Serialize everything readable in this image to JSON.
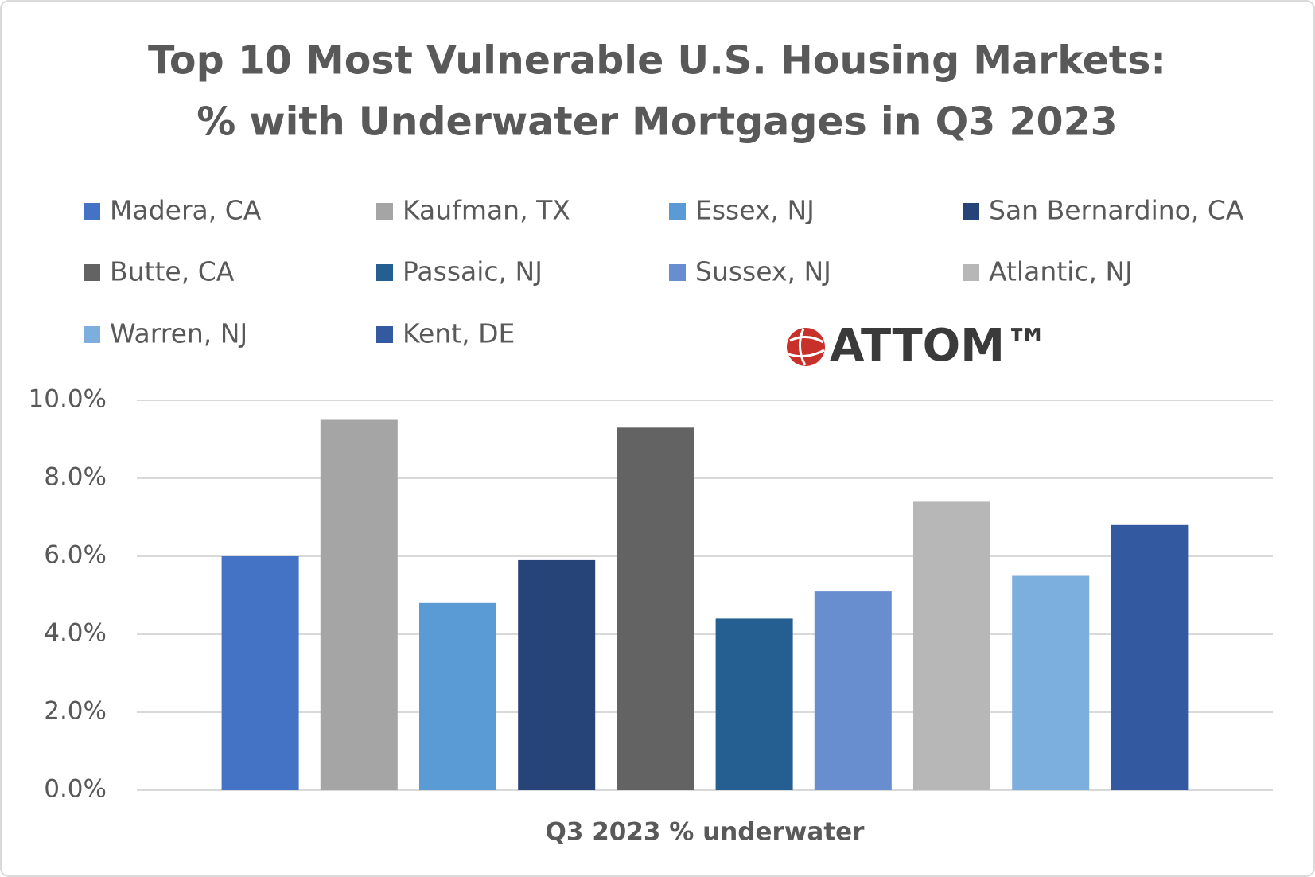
{
  "chart_data": {
    "type": "bar",
    "title": [
      "Top 10 Most Vulnerable U.S. Housing Markets:",
      "% with Underwater Mortgages in Q3 2023"
    ],
    "logo": "ATTOM™",
    "categories": [
      "Q3 2023 % underwater"
    ],
    "series": [
      {
        "name": "Madera, CA",
        "color": "#4472c4",
        "values": [
          6.0
        ]
      },
      {
        "name": "Kaufman, TX",
        "color": "#a5a5a5",
        "values": [
          9.5
        ]
      },
      {
        "name": "Essex, NJ",
        "color": "#5b9bd5",
        "values": [
          4.8
        ]
      },
      {
        "name": "San Bernardino, CA",
        "color": "#264478",
        "values": [
          5.9
        ]
      },
      {
        "name": "Butte, CA",
        "color": "#636363",
        "values": [
          9.3
        ]
      },
      {
        "name": "Passaic, NJ",
        "color": "#255e91",
        "values": [
          4.4
        ]
      },
      {
        "name": "Sussex, NJ",
        "color": "#698ed0",
        "values": [
          5.1
        ]
      },
      {
        "name": "Atlantic, NJ",
        "color": "#b7b7b7",
        "values": [
          7.4
        ]
      },
      {
        "name": "Warren, NJ",
        "color": "#7cafdd",
        "values": [
          5.5
        ]
      },
      {
        "name": "Kent, DE",
        "color": "#335aa1",
        "values": [
          6.8
        ]
      }
    ],
    "ylim": [
      0,
      10
    ],
    "yticks": [
      {
        "value": 0,
        "label": "0.0%"
      },
      {
        "value": 2,
        "label": "2.0%"
      },
      {
        "value": 4,
        "label": "4.0%"
      },
      {
        "value": 6,
        "label": "6.0%"
      },
      {
        "value": 8,
        "label": "8.0%"
      },
      {
        "value": 10,
        "label": "10.0%"
      }
    ],
    "grid": true,
    "legend": "top"
  }
}
